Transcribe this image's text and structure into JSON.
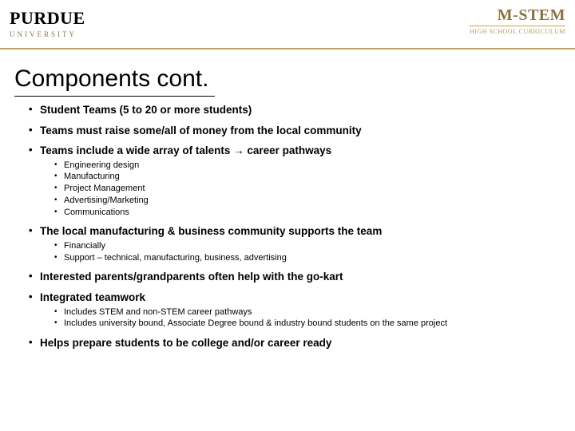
{
  "header": {
    "purdue_main": "PURDUE",
    "purdue_sub": "UNIVERSITY",
    "mstem_main": "M-STEM",
    "mstem_sub": "HIGH SCHOOL CURRICULUM"
  },
  "slide": {
    "title": "Components cont.",
    "bullets": [
      {
        "text": "Student Teams (5 to 20 or more students)"
      },
      {
        "text": "Teams must raise some/all of money from the local community"
      },
      {
        "text": "Teams include a wide array of talents → career pathways",
        "sub": [
          "Engineering design",
          "Manufacturing",
          "Project Management",
          "Advertising/Marketing",
          "Communications"
        ]
      },
      {
        "text": "The local manufacturing & business community supports the team",
        "sub": [
          "Financially",
          "Support – technical, manufacturing, business, advertising"
        ]
      },
      {
        "text": "Interested parents/grandparents often help with the go-kart"
      },
      {
        "text": "Integrated teamwork",
        "sub": [
          "Includes STEM and non-STEM career pathways",
          "Includes university bound, Associate Degree bound & industry bound students on the same project"
        ]
      },
      {
        "text": "Helps prepare students to be college and/or career ready"
      }
    ]
  },
  "style": {
    "background": "#ffffff",
    "accent_border": "#c9a050",
    "title_fontsize": 30,
    "main_bullet_fontsize": 13.5,
    "sub_bullet_fontsize": 11,
    "text_color": "#000000"
  }
}
